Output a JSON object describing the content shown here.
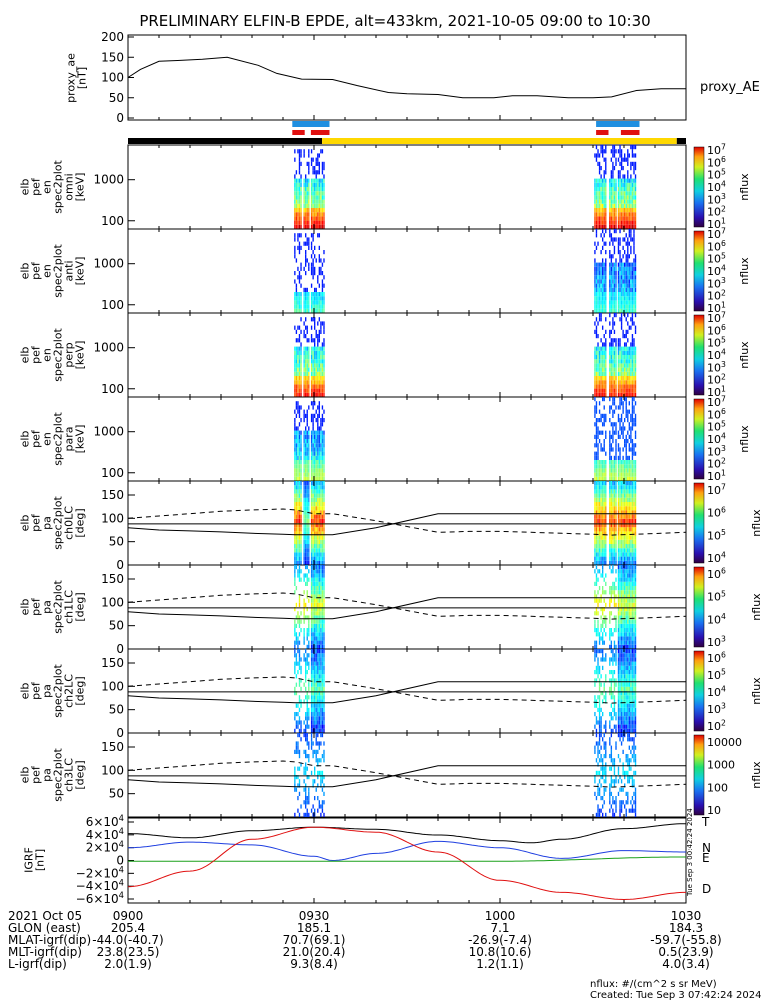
{
  "title": "PRELIMINARY ELFIN-B EPDE, alt=433km, 2021-10-05 09:00 to 10:30",
  "chart_data": {
    "type": "multi-panel",
    "time_range": [
      "09:00",
      "10:30"
    ],
    "proxy_ae": {
      "ylabel": [
        "proxy_ae",
        "[nT]"
      ],
      "legend": "proxy_AE",
      "ylim": [
        0,
        200
      ],
      "yticks": [
        "200",
        "150",
        "100",
        "50",
        "0"
      ],
      "x": [
        0,
        2,
        5,
        8,
        12,
        16,
        21,
        24,
        28,
        33,
        37,
        42,
        45,
        50,
        54,
        59,
        62,
        66,
        71,
        75,
        78,
        82,
        86,
        90
      ],
      "y": [
        100,
        120,
        140,
        142,
        145,
        150,
        130,
        110,
        96,
        95,
        80,
        63,
        60,
        58,
        50,
        50,
        55,
        55,
        50,
        50,
        52,
        68,
        72,
        72
      ]
    },
    "bars": {
      "blue": [
        [
          26.5,
          32.5
        ],
        [
          75.5,
          82.5
        ]
      ],
      "red": [
        [
          26.5,
          28.5
        ],
        [
          29.5,
          32.5
        ],
        [
          75.5,
          77.5
        ],
        [
          79.5,
          82.5
        ]
      ],
      "orbit_black": [
        [
          0,
          31.3
        ],
        [
          88.5,
          90
        ]
      ],
      "orbit_yellow": [
        [
          31.3,
          88.5
        ]
      ]
    },
    "spectrogram_panels": [
      {
        "ylabel": [
          "elb",
          "pef",
          "en",
          "spec2plot",
          "omni",
          "[keV]"
        ],
        "yticks": [
          "1000",
          "100"
        ],
        "cbar": [
          "10^7",
          "10^6",
          "10^5",
          "10^4",
          "10^3",
          "10^2",
          "10^1"
        ],
        "cbar_label": "nflux"
      },
      {
        "ylabel": [
          "elb",
          "pef",
          "en",
          "spec2plot",
          "anti",
          "[keV]"
        ],
        "yticks": [
          "1000",
          "100"
        ],
        "cbar": [
          "10^7",
          "10^6",
          "10^5",
          "10^4",
          "10^3",
          "10^2",
          "10^1"
        ],
        "cbar_label": "nflux"
      },
      {
        "ylabel": [
          "elb",
          "pef",
          "en",
          "spec2plot",
          "perp",
          "[keV]"
        ],
        "yticks": [
          "1000",
          "100"
        ],
        "cbar": [
          "10^7",
          "10^6",
          "10^5",
          "10^4",
          "10^3",
          "10^2",
          "10^1"
        ],
        "cbar_label": "nflux"
      },
      {
        "ylabel": [
          "elb",
          "pef",
          "en",
          "spec2plot",
          "para",
          "[keV]"
        ],
        "yticks": [
          "1000",
          "100"
        ],
        "cbar": [
          "10^7",
          "10^6",
          "10^5",
          "10^4",
          "10^3",
          "10^2",
          "10^1"
        ],
        "cbar_label": "nflux"
      }
    ],
    "pitch_panels": [
      {
        "ylabel": [
          "elb",
          "pef",
          "pa",
          "spec2plot",
          "ch0LC",
          "[deg]"
        ],
        "yticks": [
          "150",
          "100",
          "50",
          "0"
        ],
        "cbar": [
          "10^7",
          "10^6",
          "10^5",
          "10^4"
        ],
        "cbar_label": "nflux"
      },
      {
        "ylabel": [
          "elb",
          "pef",
          "pa",
          "spec2plot",
          "ch1LC",
          "[deg]"
        ],
        "yticks": [
          "150",
          "100",
          "50",
          "0"
        ],
        "cbar": [
          "10^6",
          "10^5",
          "10^4",
          "10^3"
        ],
        "cbar_label": "nflux"
      },
      {
        "ylabel": [
          "elb",
          "pef",
          "pa",
          "spec2plot",
          "ch2LC",
          "[deg]"
        ],
        "yticks": [
          "150",
          "100",
          "50",
          "0"
        ],
        "cbar": [
          "10^6",
          "10^5",
          "10^4",
          "10^3",
          "10^2"
        ],
        "cbar_label": "nflux"
      },
      {
        "ylabel": [
          "elb",
          "pef",
          "pa",
          "spec2plot",
          "ch3LC",
          "[deg]"
        ],
        "yticks": [
          "150",
          "100",
          "50"
        ],
        "cbar": [
          "10000",
          "1000",
          "100",
          "10"
        ],
        "cbar_label": "nflux"
      }
    ],
    "igrf": {
      "ylabel": [
        "IGRF",
        "[nT]"
      ],
      "yticks": [
        "6×10^4",
        "4×10^4",
        "2×10^4",
        "0",
        "−2×10^4",
        "−4×10^4",
        "−6×10^4"
      ],
      "ylim": [
        -60000,
        60000
      ],
      "legend": [
        "T",
        "N",
        "E",
        "D"
      ],
      "series": [
        {
          "name": "T",
          "color": "#000000",
          "x": [
            0,
            10,
            20,
            30,
            40,
            50,
            60,
            65,
            70,
            80,
            90
          ],
          "y": [
            38000,
            32000,
            42000,
            47000,
            44000,
            36000,
            28000,
            25000,
            30000,
            45000,
            52000
          ]
        },
        {
          "name": "N",
          "color": "#1f3fe0",
          "x": [
            0,
            10,
            20,
            30,
            33,
            40,
            50,
            60,
            70,
            80,
            90
          ],
          "y": [
            18000,
            26000,
            22000,
            6000,
            0,
            10000,
            27000,
            18000,
            3000,
            14000,
            12000
          ]
        },
        {
          "name": "E",
          "color": "#1aa01a",
          "x": [
            0,
            30,
            60,
            90
          ],
          "y": [
            -1000,
            -1000,
            -1000,
            5000
          ]
        },
        {
          "name": "D",
          "color": "#e01010",
          "x": [
            0,
            10,
            20,
            30,
            40,
            50,
            60,
            70,
            80,
            90
          ],
          "y": [
            -37000,
            -15000,
            30000,
            47000,
            40000,
            12000,
            -28000,
            -45000,
            -55000,
            -45000
          ]
        }
      ]
    },
    "overlay_lines": {
      "x": [
        0,
        5,
        10,
        15,
        20,
        25,
        27,
        30,
        33,
        40,
        50,
        55,
        60,
        65,
        70,
        75,
        78,
        82,
        86,
        90
      ],
      "solid": [
        80,
        75,
        73,
        71,
        68,
        66,
        65,
        65,
        65,
        80,
        110,
        110,
        110,
        110,
        110,
        110,
        110,
        110,
        110,
        110
      ],
      "solid2": [
        88,
        88,
        88,
        88,
        88,
        88,
        88,
        88,
        88,
        88,
        88,
        88,
        88,
        88,
        88,
        88,
        88,
        88,
        88,
        88
      ],
      "dashed": [
        100,
        105,
        110,
        115,
        118,
        120,
        118,
        110,
        110,
        95,
        70,
        72,
        72,
        70,
        68,
        66,
        64,
        66,
        68,
        70
      ]
    },
    "x_tick_labels": [
      "0900",
      "0930",
      "1000",
      "1030"
    ],
    "footer_rows": [
      {
        "label": "2021 Oct 05",
        "values": [
          "0900",
          "0930",
          "1000",
          "1030"
        ]
      },
      {
        "label": "GLON (east)",
        "values": [
          "205.4",
          "185.1",
          "7.1",
          "184.3"
        ]
      },
      {
        "label": "MLAT-igrf(dip)",
        "values": [
          "-44.0(-40.7)",
          "70.7(69.1)",
          "-26.9(-7.4)",
          "-59.7(-55.8)"
        ]
      },
      {
        "label": "MLT-igrf(dip)",
        "values": [
          "23.8(23.5)",
          "21.0(20.4)",
          "10.8(10.6)",
          "0.5(23.9)"
        ]
      },
      {
        "label": "L-igrf(dip)",
        "values": [
          "2.0(1.9)",
          "9.3(8.4)",
          "1.2(1.1)",
          "4.0(3.4)"
        ]
      }
    ],
    "nflux_units": "nflux: #/(cm^2 s sr MeV)",
    "created": "Created: Tue Sep  3 07:42:24 2024",
    "sidebar_stamp": "Tue Sep  3 00:42:24 2024"
  }
}
